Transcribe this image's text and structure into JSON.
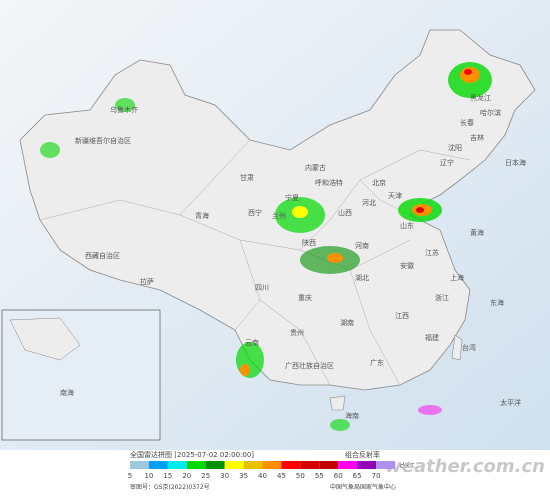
{
  "map": {
    "labels": [
      "新疆维吾尔自治区",
      "乌鲁木齐",
      "西藏自治区",
      "拉萨",
      "青海",
      "西宁",
      "甘肃",
      "兰州",
      "内蒙古",
      "呼和浩特",
      "宁夏",
      "黑龙江",
      "哈尔滨",
      "吉林",
      "长春",
      "辽宁",
      "沈阳",
      "北京",
      "天津",
      "河北",
      "山西",
      "山东",
      "陕西",
      "河南",
      "江苏",
      "安徽",
      "上海",
      "湖北",
      "四川",
      "重庆",
      "湖南",
      "浙江",
      "江西",
      "贵州",
      "云南",
      "福建",
      "台湾",
      "广西壮族自治区",
      "广东",
      "海南",
      "日本海",
      "黄海",
      "东海",
      "太平洋",
      "南海"
    ]
  },
  "legend": {
    "title": "全国雷达拼图 [2025-07-02 02:00:00]",
    "product": "组合反射率",
    "unit": "dBZ",
    "levels": [
      5,
      10,
      15,
      20,
      25,
      30,
      35,
      40,
      45,
      50,
      55,
      60,
      65,
      70
    ],
    "colors": [
      "#9cc8e0",
      "#01a0f6",
      "#00ecec",
      "#00d800",
      "#019000",
      "#ffff00",
      "#e7c000",
      "#ff9000",
      "#ff0000",
      "#d60000",
      "#c00000",
      "#ff00f0",
      "#9600b4",
      "#ad90f0"
    ]
  },
  "footer": {
    "approval": "审图号：GS京(2022)0372号",
    "source": "中国气象局国家气象中心"
  },
  "watermark": "weather.com.cn"
}
